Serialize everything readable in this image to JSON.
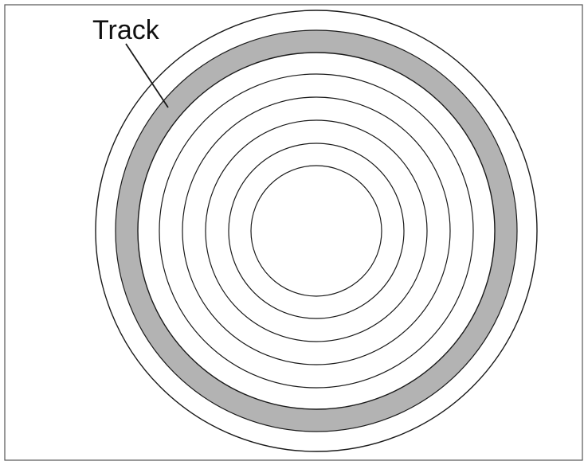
{
  "diagram": {
    "label": "Track",
    "colors": {
      "stroke": "#1a1a1a",
      "track_fill": "#b3b3b3",
      "background": "#ffffff"
    },
    "track_count": 8,
    "highlighted_track": 1
  }
}
